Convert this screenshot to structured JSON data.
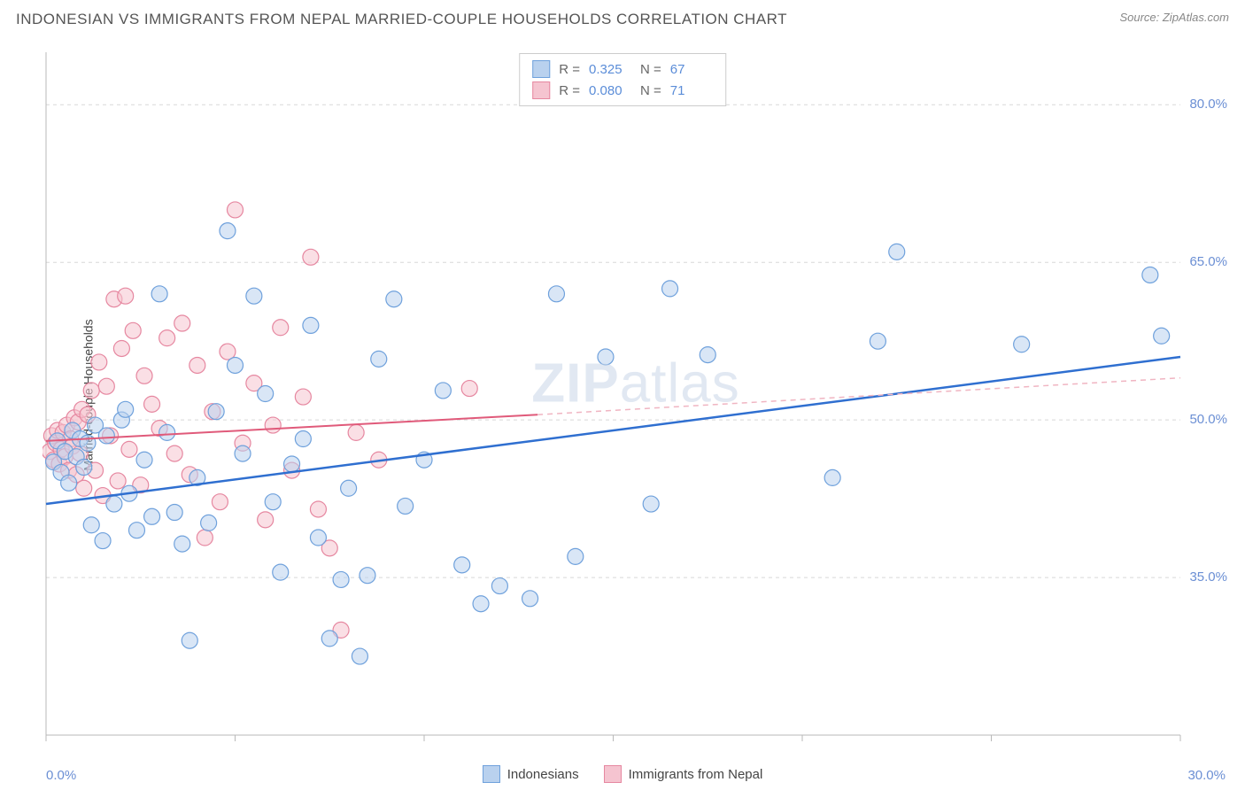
{
  "title": "INDONESIAN VS IMMIGRANTS FROM NEPAL MARRIED-COUPLE HOUSEHOLDS CORRELATION CHART",
  "source_label": "Source: ZipAtlas.com",
  "watermark_zip": "ZIP",
  "watermark_atlas": "atlas",
  "ylabel": "Married-couple Households",
  "xaxis": {
    "min_label": "0.0%",
    "max_label": "30.0%",
    "xmin": 0,
    "xmax": 30,
    "ticks": [
      0,
      5,
      10,
      15,
      20,
      25,
      30
    ]
  },
  "yaxis": {
    "ymin": 20,
    "ymax": 85,
    "ticks": [
      {
        "v": 35,
        "label": "35.0%"
      },
      {
        "v": 50,
        "label": "50.0%"
      },
      {
        "v": 65,
        "label": "65.0%"
      },
      {
        "v": 80,
        "label": "80.0%"
      }
    ]
  },
  "series": {
    "blue": {
      "name": "Indonesians",
      "color_fill": "#b9d1ee",
      "color_stroke": "#6fa1dc",
      "marker_radius": 9,
      "fill_opacity": 0.55,
      "line_color": "#2f6fd0",
      "line_width": 2.5,
      "r_label": "R =",
      "r_value": "0.325",
      "n_label": "N =",
      "n_value": "67",
      "trend": {
        "x1": 0,
        "y1": 42,
        "x2": 30,
        "y2": 56
      },
      "points": [
        [
          0.2,
          46
        ],
        [
          0.3,
          48
        ],
        [
          0.4,
          45
        ],
        [
          0.5,
          47
        ],
        [
          0.6,
          44
        ],
        [
          0.7,
          49
        ],
        [
          0.8,
          46.5
        ],
        [
          0.9,
          48.2
        ],
        [
          1.0,
          45.5
        ],
        [
          1.1,
          47.8
        ],
        [
          1.2,
          40
        ],
        [
          1.3,
          49.5
        ],
        [
          1.5,
          38.5
        ],
        [
          1.6,
          48.5
        ],
        [
          1.8,
          42
        ],
        [
          2.0,
          50
        ],
        [
          2.1,
          51
        ],
        [
          2.2,
          43
        ],
        [
          2.4,
          39.5
        ],
        [
          2.6,
          46.2
        ],
        [
          2.8,
          40.8
        ],
        [
          3.0,
          62
        ],
        [
          3.2,
          48.8
        ],
        [
          3.4,
          41.2
        ],
        [
          3.6,
          38.2
        ],
        [
          3.8,
          29
        ],
        [
          4.0,
          44.5
        ],
        [
          4.3,
          40.2
        ],
        [
          4.5,
          50.8
        ],
        [
          4.8,
          68
        ],
        [
          5.0,
          55.2
        ],
        [
          5.2,
          46.8
        ],
        [
          5.5,
          61.8
        ],
        [
          5.8,
          52.5
        ],
        [
          6.0,
          42.2
        ],
        [
          6.2,
          35.5
        ],
        [
          6.5,
          45.8
        ],
        [
          6.8,
          48.2
        ],
        [
          7.0,
          59
        ],
        [
          7.2,
          38.8
        ],
        [
          7.5,
          29.2
        ],
        [
          7.8,
          34.8
        ],
        [
          8.0,
          43.5
        ],
        [
          8.3,
          27.5
        ],
        [
          8.5,
          35.2
        ],
        [
          8.8,
          55.8
        ],
        [
          9.2,
          61.5
        ],
        [
          9.5,
          41.8
        ],
        [
          10.0,
          46.2
        ],
        [
          10.5,
          52.8
        ],
        [
          11.0,
          36.2
        ],
        [
          11.5,
          32.5
        ],
        [
          12.0,
          34.2
        ],
        [
          12.8,
          33
        ],
        [
          13.5,
          62
        ],
        [
          14.0,
          37
        ],
        [
          14.8,
          56
        ],
        [
          16.0,
          42
        ],
        [
          16.5,
          62.5
        ],
        [
          17.5,
          56.2
        ],
        [
          20.8,
          44.5
        ],
        [
          22.0,
          57.5
        ],
        [
          22.5,
          66
        ],
        [
          25.8,
          57.2
        ],
        [
          29.2,
          63.8
        ],
        [
          29.5,
          58
        ]
      ]
    },
    "pink": {
      "name": "Immigrants from Nepal",
      "color_fill": "#f5c4d0",
      "color_stroke": "#e687a0",
      "marker_radius": 9,
      "fill_opacity": 0.55,
      "line_color": "#e05a7a",
      "line_width": 2,
      "dash_color": "#f0b5c2",
      "r_label": "R =",
      "r_value": "0.080",
      "n_label": "N =",
      "n_value": "71",
      "trend": {
        "x1": 0,
        "y1": 48,
        "x2": 13,
        "y2": 50.5
      },
      "trend_dash": {
        "x1": 13,
        "y1": 50.5,
        "x2": 30,
        "y2": 54
      },
      "points": [
        [
          0.1,
          47
        ],
        [
          0.15,
          48.5
        ],
        [
          0.2,
          46.2
        ],
        [
          0.25,
          47.8
        ],
        [
          0.3,
          49
        ],
        [
          0.35,
          45.8
        ],
        [
          0.4,
          47.2
        ],
        [
          0.45,
          48.8
        ],
        [
          0.5,
          46.5
        ],
        [
          0.55,
          49.5
        ],
        [
          0.6,
          45.2
        ],
        [
          0.65,
          48.2
        ],
        [
          0.7,
          47.5
        ],
        [
          0.75,
          50.2
        ],
        [
          0.8,
          44.8
        ],
        [
          0.85,
          49.8
        ],
        [
          0.9,
          46.8
        ],
        [
          0.95,
          51
        ],
        [
          1.0,
          43.5
        ],
        [
          1.1,
          50.5
        ],
        [
          1.2,
          52.8
        ],
        [
          1.3,
          45.2
        ],
        [
          1.4,
          55.5
        ],
        [
          1.5,
          42.8
        ],
        [
          1.6,
          53.2
        ],
        [
          1.7,
          48.5
        ],
        [
          1.8,
          61.5
        ],
        [
          1.9,
          44.2
        ],
        [
          2.0,
          56.8
        ],
        [
          2.1,
          61.8
        ],
        [
          2.2,
          47.2
        ],
        [
          2.3,
          58.5
        ],
        [
          2.5,
          43.8
        ],
        [
          2.6,
          54.2
        ],
        [
          2.8,
          51.5
        ],
        [
          3.0,
          49.2
        ],
        [
          3.2,
          57.8
        ],
        [
          3.4,
          46.8
        ],
        [
          3.6,
          59.2
        ],
        [
          3.8,
          44.8
        ],
        [
          4.0,
          55.2
        ],
        [
          4.2,
          38.8
        ],
        [
          4.4,
          50.8
        ],
        [
          4.6,
          42.2
        ],
        [
          4.8,
          56.5
        ],
        [
          5.0,
          70
        ],
        [
          5.2,
          47.8
        ],
        [
          5.5,
          53.5
        ],
        [
          5.8,
          40.5
        ],
        [
          6.0,
          49.5
        ],
        [
          6.2,
          58.8
        ],
        [
          6.5,
          45.2
        ],
        [
          6.8,
          52.2
        ],
        [
          7.0,
          65.5
        ],
        [
          7.2,
          41.5
        ],
        [
          7.5,
          37.8
        ],
        [
          7.8,
          30
        ],
        [
          8.2,
          48.8
        ],
        [
          8.8,
          46.2
        ],
        [
          11.2,
          53
        ]
      ]
    }
  },
  "colors": {
    "background": "#ffffff",
    "grid": "#d8d8d8",
    "axis": "#b8b8b8",
    "tick_label": "#6b8fd4"
  }
}
